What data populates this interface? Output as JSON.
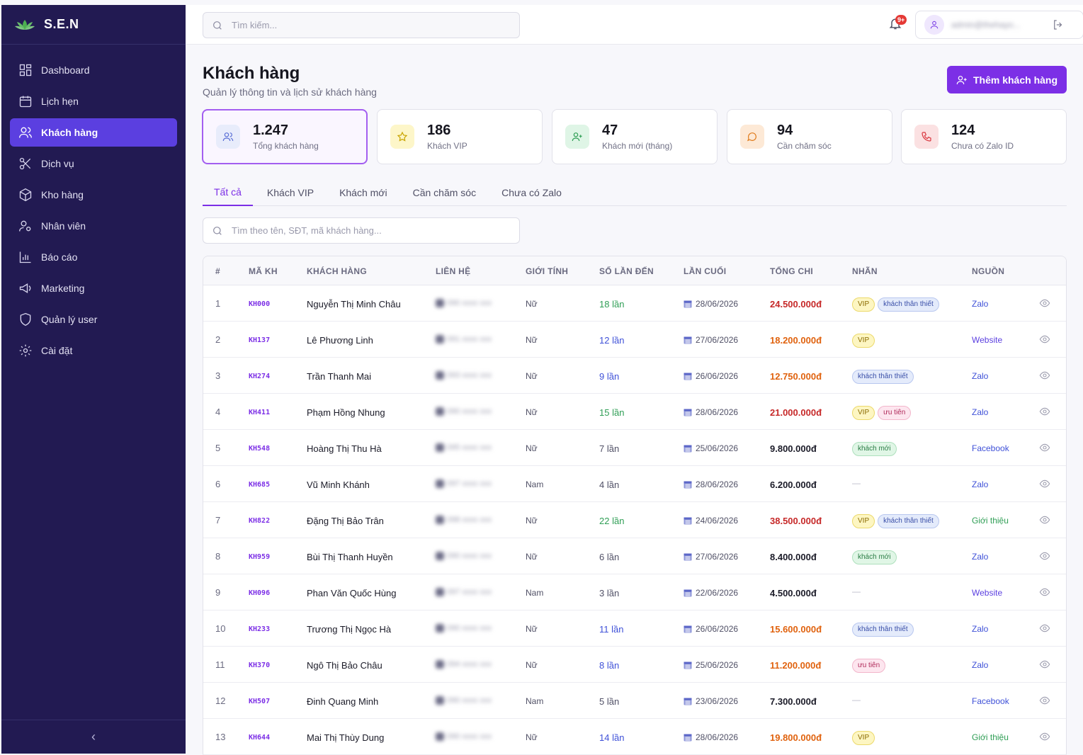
{
  "brand": {
    "name": "S.E.N"
  },
  "sidebar": {
    "items": [
      {
        "label": "Dashboard",
        "icon": "dashboard-icon",
        "active": false
      },
      {
        "label": "Lịch hẹn",
        "icon": "calendar-icon",
        "active": false
      },
      {
        "label": "Khách hàng",
        "icon": "users-icon",
        "active": true
      },
      {
        "label": "Dịch vụ",
        "icon": "scissors-icon",
        "active": false
      },
      {
        "label": "Kho hàng",
        "icon": "box-icon",
        "active": false
      },
      {
        "label": "Nhân viên",
        "icon": "user-gear-icon",
        "active": false
      },
      {
        "label": "Báo cáo",
        "icon": "bar-chart-icon",
        "active": false
      },
      {
        "label": "Marketing",
        "icon": "megaphone-icon",
        "active": false
      },
      {
        "label": "Quản lý user",
        "icon": "shield-icon",
        "active": false
      },
      {
        "label": "Cài đặt",
        "icon": "gear-icon",
        "active": false
      }
    ],
    "collapse_label": "‹"
  },
  "topbar": {
    "search_placeholder": "Tìm kiếm...",
    "notification_badge": "9+",
    "user_email": "admin@thehayo..."
  },
  "page": {
    "title": "Khách hàng",
    "subtitle": "Quản lý thông tin và lịch sử khách hàng",
    "add_button": "Thêm khách hàng"
  },
  "stats": [
    {
      "value": "1.247",
      "label": "Tổng khách hàng",
      "icon": "users-icon",
      "color": "#5a6fd6",
      "bg": "#e8ecfb",
      "active": true
    },
    {
      "value": "186",
      "label": "Khách VIP",
      "icon": "star-icon",
      "color": "#c9a400",
      "bg": "#fdf6c9",
      "active": false
    },
    {
      "value": "47",
      "label": "Khách mới (tháng)",
      "icon": "user-plus-icon",
      "color": "#2f9e55",
      "bg": "#dff5e6",
      "active": false
    },
    {
      "value": "94",
      "label": "Cần chăm sóc",
      "icon": "chat-icon",
      "color": "#e07b1a",
      "bg": "#fde9d6",
      "active": false
    },
    {
      "value": "124",
      "label": "Chưa có Zalo ID",
      "icon": "phone-icon",
      "color": "#d9363e",
      "bg": "#fbe1e2",
      "active": false
    }
  ],
  "tabs": [
    {
      "label": "Tất cả",
      "active": true
    },
    {
      "label": "Khách VIP",
      "active": false
    },
    {
      "label": "Khách mới",
      "active": false
    },
    {
      "label": "Cần chăm sóc",
      "active": false
    },
    {
      "label": "Chưa có Zalo",
      "active": false
    }
  ],
  "table": {
    "search_placeholder": "Tìm theo tên, SĐT, mã khách hàng...",
    "columns": [
      "#",
      "MÃ KH",
      "KHÁCH HÀNG",
      "LIÊN HỆ",
      "GIỚI TÍNH",
      "SỐ LẦN ĐẾN",
      "LẦN CUỐI",
      "TỔNG CHI",
      "NHÃN",
      "NGUỒN"
    ],
    "rows": [
      {
        "idx": "1",
        "code": "KH000",
        "name": "Nguyễn Thị Minh Châu",
        "contact": "090 xxxx xxx",
        "gender": "Nữ",
        "visits": "18 lần",
        "visits_color": "#2f9e55",
        "last": "28/06/2026",
        "total": "24.500.000đ",
        "total_color": "#c62828",
        "tags": [
          "VIP",
          "khách thân thiết"
        ],
        "source": "Zalo",
        "source_color": "#3f51d8"
      },
      {
        "idx": "2",
        "code": "KH137",
        "name": "Lê Phương Linh",
        "contact": "091 xxxx xxx",
        "gender": "Nữ",
        "visits": "12 lần",
        "visits_color": "#3f51d8",
        "last": "27/06/2026",
        "total": "18.200.000đ",
        "total_color": "#e0620e",
        "tags": [
          "VIP"
        ],
        "source": "Website",
        "source_color": "#5b3fe0"
      },
      {
        "idx": "3",
        "code": "KH274",
        "name": "Trần Thanh Mai",
        "contact": "093 xxxx xxx",
        "gender": "Nữ",
        "visits": "9 lần",
        "visits_color": "#3f51d8",
        "last": "26/06/2026",
        "total": "12.750.000đ",
        "total_color": "#e0620e",
        "tags": [
          "khách thân thiết"
        ],
        "source": "Zalo",
        "source_color": "#3f51d8"
      },
      {
        "idx": "4",
        "code": "KH411",
        "name": "Phạm Hồng Nhung",
        "contact": "090 xxxx xxx",
        "gender": "Nữ",
        "visits": "15 lần",
        "visits_color": "#2f9e55",
        "last": "28/06/2026",
        "total": "21.000.000đ",
        "total_color": "#c62828",
        "tags": [
          "VIP",
          "ưu tiên"
        ],
        "source": "Zalo",
        "source_color": "#3f51d8"
      },
      {
        "idx": "5",
        "code": "KH548",
        "name": "Hoàng Thị Thu Hà",
        "contact": "095 xxxx xxx",
        "gender": "Nữ",
        "visits": "7 lần",
        "visits_color": "#505066",
        "last": "25/06/2026",
        "total": "9.800.000đ",
        "total_color": "#1b1b28",
        "tags": [
          "khách mới"
        ],
        "source": "Facebook",
        "source_color": "#3f51d8"
      },
      {
        "idx": "6",
        "code": "KH685",
        "name": "Vũ Minh Khánh",
        "contact": "097 xxxx xxx",
        "gender": "Nam",
        "visits": "4 lần",
        "visits_color": "#505066",
        "last": "28/06/2026",
        "total": "6.200.000đ",
        "total_color": "#1b1b28",
        "tags": [],
        "source": "Zalo",
        "source_color": "#3f51d8"
      },
      {
        "idx": "7",
        "code": "KH822",
        "name": "Đặng Thị Bảo Trân",
        "contact": "098 xxxx xxx",
        "gender": "Nữ",
        "visits": "22 lần",
        "visits_color": "#2f9e55",
        "last": "24/06/2026",
        "total": "38.500.000đ",
        "total_color": "#c62828",
        "tags": [
          "VIP",
          "khách thân thiết"
        ],
        "source": "Giới thiệu",
        "source_color": "#2f9e55"
      },
      {
        "idx": "8",
        "code": "KH959",
        "name": "Bùi Thị Thanh Huyền",
        "contact": "090 xxxx xxx",
        "gender": "Nữ",
        "visits": "6 lần",
        "visits_color": "#505066",
        "last": "27/06/2026",
        "total": "8.400.000đ",
        "total_color": "#1b1b28",
        "tags": [
          "khách mới"
        ],
        "source": "Zalo",
        "source_color": "#3f51d8"
      },
      {
        "idx": "9",
        "code": "KH096",
        "name": "Phan Văn Quốc Hùng",
        "contact": "097 xxxx xxx",
        "gender": "Nam",
        "visits": "3 lần",
        "visits_color": "#505066",
        "last": "22/06/2026",
        "total": "4.500.000đ",
        "total_color": "#1b1b28",
        "tags": [],
        "source": "Website",
        "source_color": "#5b3fe0"
      },
      {
        "idx": "10",
        "code": "KH233",
        "name": "Trương Thị Ngọc Hà",
        "contact": "090 xxxx xxx",
        "gender": "Nữ",
        "visits": "11 lần",
        "visits_color": "#3f51d8",
        "last": "26/06/2026",
        "total": "15.600.000đ",
        "total_color": "#e0620e",
        "tags": [
          "khách thân thiết"
        ],
        "source": "Zalo",
        "source_color": "#3f51d8"
      },
      {
        "idx": "11",
        "code": "KH370",
        "name": "Ngô Thị Bảo Châu",
        "contact": "094 xxxx xxx",
        "gender": "Nữ",
        "visits": "8 lần",
        "visits_color": "#3f51d8",
        "last": "25/06/2026",
        "total": "11.200.000đ",
        "total_color": "#e0620e",
        "tags": [
          "ưu tiên"
        ],
        "source": "Zalo",
        "source_color": "#3f51d8"
      },
      {
        "idx": "12",
        "code": "KH507",
        "name": "Đinh Quang Minh",
        "contact": "090 xxxx xxx",
        "gender": "Nam",
        "visits": "5 lần",
        "visits_color": "#505066",
        "last": "23/06/2026",
        "total": "7.300.000đ",
        "total_color": "#1b1b28",
        "tags": [],
        "source": "Facebook",
        "source_color": "#3f51d8"
      },
      {
        "idx": "13",
        "code": "KH644",
        "name": "Mai Thị Thùy Dung",
        "contact": "090 xxxx xxx",
        "gender": "Nữ",
        "visits": "14 lần",
        "visits_color": "#3f51d8",
        "last": "28/06/2026",
        "total": "19.800.000đ",
        "total_color": "#e0620e",
        "tags": [
          "VIP"
        ],
        "source": "Giới thiệu",
        "source_color": "#2f9e55"
      }
    ],
    "empty_tag": "—",
    "tag_styles": {
      "VIP": {
        "bg": "#fdf6c2",
        "border": "#ecd96a",
        "color": "#8a6a00"
      },
      "khách thân thiết": {
        "bg": "#e4ebfb",
        "border": "#b8c7ef",
        "color": "#3a4fa8"
      },
      "ưu tiên": {
        "bg": "#fde6ef",
        "border": "#f2b6cb",
        "color": "#b02a5a"
      },
      "khách mới": {
        "bg": "#e0f6e6",
        "border": "#aee0bd",
        "color": "#2a7d45"
      }
    }
  }
}
